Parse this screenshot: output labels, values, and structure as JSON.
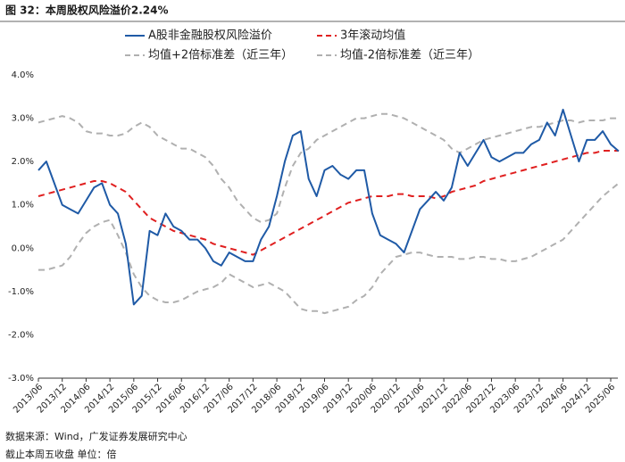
{
  "chart_data": {
    "type": "line",
    "title": "图 32：本周股权风险溢价2.24%",
    "source": "数据来源：Wind，广发证券发展研究中心",
    "note": "截止本周五收盘 单位：倍",
    "categories": [
      "2013/06",
      null,
      null,
      "2013/12",
      null,
      null,
      "2014/06",
      null,
      null,
      "2014/12",
      null,
      null,
      "2015/06",
      null,
      null,
      "2015/12",
      null,
      null,
      "2016/06",
      null,
      null,
      "2016/12",
      null,
      null,
      "2017/06",
      null,
      null,
      "2017/12",
      null,
      null,
      "2018/06",
      null,
      null,
      "2018/12",
      null,
      null,
      "2019/06",
      null,
      null,
      "2019/12",
      null,
      null,
      "2020/06",
      null,
      null,
      "2020/12",
      null,
      null,
      "2021/06",
      null,
      null,
      "2021/12",
      null,
      null,
      "2022/06",
      null,
      null,
      "2022/12",
      null,
      null,
      "2023/06",
      null,
      null,
      "2023/12",
      null,
      null,
      "2024/06",
      null,
      null,
      "2024/12",
      null,
      null,
      "2025/06",
      null
    ],
    "series": [
      {
        "name": "A股非金融股权风险溢价",
        "color": "#1f5aa6",
        "style": "solid",
        "values": [
          1.8,
          2.0,
          1.5,
          1.0,
          0.9,
          0.8,
          1.1,
          1.4,
          1.5,
          1.0,
          0.8,
          0.1,
          -1.3,
          -1.1,
          0.4,
          0.3,
          0.8,
          0.5,
          0.4,
          0.2,
          0.2,
          0.0,
          -0.3,
          -0.4,
          -0.1,
          -0.2,
          -0.3,
          -0.3,
          0.2,
          0.5,
          1.2,
          2.0,
          2.6,
          2.7,
          1.6,
          1.2,
          1.8,
          1.9,
          1.7,
          1.6,
          1.8,
          1.8,
          0.8,
          0.3,
          0.2,
          0.1,
          -0.1,
          0.4,
          0.9,
          1.1,
          1.3,
          1.1,
          1.4,
          2.2,
          1.9,
          2.2,
          2.5,
          2.1,
          2.0,
          2.1,
          2.2,
          2.2,
          2.4,
          2.5,
          2.9,
          2.6,
          3.2,
          2.6,
          2.0,
          2.5,
          2.5,
          2.7,
          2.4,
          2.24
        ]
      },
      {
        "name": "3年滚动均值",
        "color": "#e02020",
        "style": "dashed",
        "values": [
          1.2,
          1.25,
          1.3,
          1.35,
          1.4,
          1.45,
          1.5,
          1.55,
          1.55,
          1.5,
          1.4,
          1.3,
          1.1,
          0.9,
          0.7,
          0.6,
          0.5,
          0.4,
          0.35,
          0.3,
          0.25,
          0.2,
          0.1,
          0.05,
          0.0,
          -0.05,
          -0.1,
          -0.15,
          -0.05,
          0.05,
          0.15,
          0.25,
          0.35,
          0.45,
          0.55,
          0.65,
          0.75,
          0.85,
          0.95,
          1.05,
          1.1,
          1.15,
          1.2,
          1.2,
          1.2,
          1.25,
          1.25,
          1.2,
          1.2,
          1.2,
          1.15,
          1.2,
          1.3,
          1.35,
          1.4,
          1.45,
          1.55,
          1.6,
          1.65,
          1.7,
          1.75,
          1.8,
          1.85,
          1.9,
          1.95,
          2.0,
          2.05,
          2.1,
          2.15,
          2.2,
          2.2,
          2.25,
          2.25,
          2.25
        ]
      },
      {
        "name": "均值+2倍标准差（近三年）",
        "color": "#b0b0b0",
        "style": "dashed",
        "values": [
          2.9,
          2.95,
          3.0,
          3.05,
          3.0,
          2.9,
          2.7,
          2.65,
          2.65,
          2.6,
          2.6,
          2.65,
          2.8,
          2.9,
          2.8,
          2.6,
          2.5,
          2.4,
          2.3,
          2.3,
          2.2,
          2.1,
          1.9,
          1.6,
          1.4,
          1.1,
          0.9,
          0.7,
          0.6,
          0.65,
          0.8,
          1.4,
          1.9,
          2.2,
          2.3,
          2.5,
          2.6,
          2.7,
          2.8,
          2.9,
          3.0,
          3.0,
          3.05,
          3.1,
          3.1,
          3.05,
          3.0,
          2.9,
          2.8,
          2.7,
          2.6,
          2.5,
          2.3,
          2.2,
          2.3,
          2.4,
          2.5,
          2.55,
          2.6,
          2.65,
          2.7,
          2.75,
          2.8,
          2.8,
          2.85,
          2.9,
          2.95,
          2.95,
          2.9,
          2.95,
          2.95,
          2.95,
          3.0,
          3.0
        ]
      },
      {
        "name": "均值-2倍标准差（近三年）",
        "color": "#b0b0b0",
        "style": "dashed",
        "values": [
          -0.5,
          -0.5,
          -0.45,
          -0.4,
          -0.2,
          0.1,
          0.35,
          0.5,
          0.6,
          0.65,
          0.3,
          -0.1,
          -0.6,
          -0.9,
          -1.1,
          -1.2,
          -1.25,
          -1.25,
          -1.2,
          -1.1,
          -1.0,
          -0.95,
          -0.9,
          -0.8,
          -0.6,
          -0.7,
          -0.8,
          -0.9,
          -0.85,
          -0.8,
          -0.9,
          -1.0,
          -1.2,
          -1.4,
          -1.45,
          -1.45,
          -1.5,
          -1.45,
          -1.4,
          -1.35,
          -1.2,
          -1.1,
          -0.9,
          -0.6,
          -0.4,
          -0.2,
          -0.15,
          -0.1,
          -0.1,
          -0.15,
          -0.2,
          -0.2,
          -0.2,
          -0.25,
          -0.25,
          -0.2,
          -0.2,
          -0.25,
          -0.25,
          -0.3,
          -0.3,
          -0.25,
          -0.2,
          -0.1,
          0.0,
          0.1,
          0.2,
          0.4,
          0.6,
          0.8,
          1.0,
          1.2,
          1.35,
          1.5
        ]
      }
    ],
    "ylim": [
      -3,
      4
    ],
    "yticks": [
      {
        "value": -3,
        "label": "-3.0%"
      },
      {
        "value": -2,
        "label": "-2.0%"
      },
      {
        "value": -1,
        "label": "-1.0%"
      },
      {
        "value": 0,
        "label": "0.0%"
      },
      {
        "value": 1,
        "label": "1.0%"
      },
      {
        "value": 2,
        "label": "2.0%"
      },
      {
        "value": 3,
        "label": "3.0%"
      },
      {
        "value": 4,
        "label": "4.0%"
      }
    ],
    "grid": false
  }
}
